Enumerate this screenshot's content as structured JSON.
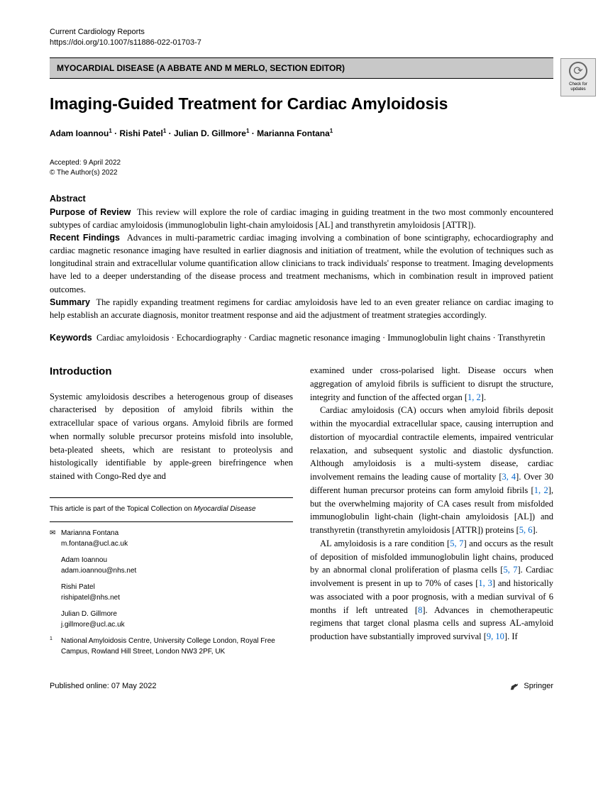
{
  "header": {
    "journal": "Current Cardiology Reports",
    "doi": "https://doi.org/10.1007/s11886-022-01703-7"
  },
  "section_bar": "MYOCARDIAL DISEASE (A ABBATE AND M MERLO, SECTION EDITOR)",
  "check_updates": "Check for updates",
  "title": "Imaging-Guided Treatment for Cardiac Amyloidosis",
  "authors_html": "Adam Ioannou<sup>1</sup> · Rishi Patel<sup>1</sup> · Julian D. Gillmore<sup>1</sup> · Marianna Fontana<sup>1</sup>",
  "accepted": "Accepted: 9 April 2022",
  "copyright": "© The Author(s) 2022",
  "abstract": {
    "heading": "Abstract",
    "purpose_label": "Purpose of Review",
    "purpose_text": "This review will explore the role of cardiac imaging in guiding treatment in the two most commonly encountered subtypes of cardiac amyloidosis (immunoglobulin light-chain amyloidosis [AL] and transthyretin amyloidosis [ATTR]).",
    "findings_label": "Recent Findings",
    "findings_text": "Advances in multi-parametric cardiac imaging involving a combination of bone scintigraphy, echocardiography and cardiac magnetic resonance imaging have resulted in earlier diagnosis and initiation of treatment, while the evolution of techniques such as longitudinal strain and extracellular volume quantification allow clinicians to track individuals' response to treatment. Imaging developments have led to a deeper understanding of the disease process and treatment mechanisms, which in combination result in improved patient outcomes.",
    "summary_label": "Summary",
    "summary_text": "The rapidly expanding treatment regimens for cardiac amyloidosis have led to an even greater reliance on cardiac imaging to help establish an accurate diagnosis, monitor treatment response and aid the adjustment of treatment strategies accordingly."
  },
  "keywords": {
    "label": "Keywords",
    "text": "Cardiac amyloidosis · Echocardiography · Cardiac magnetic resonance imaging · Immunoglobulin light chains · Transthyretin"
  },
  "intro": {
    "heading": "Introduction",
    "p1": "Systemic amyloidosis describes a heterogenous group of diseases characterised by deposition of amyloid fibrils within the extracellular space of various organs. Amyloid fibrils are formed when normally soluble precursor proteins misfold into insoluble, beta-pleated sheets, which are resistant to proteolysis and histologically identifiable by apple-green birefringence when stained with Congo-Red dye and",
    "p1b": "examined under cross-polarised light. Disease occurs when aggregation of amyloid fibrils is sufficient to disrupt the structure, integrity and function of the affected organ [",
    "p2": "Cardiac amyloidosis (CA) occurs when amyloid fibrils deposit within the myocardial extracellular space, causing interruption and distortion of myocardial contractile elements, impaired ventricular relaxation, and subsequent systolic and diastolic dysfunction. Although amyloidosis is a multi-system disease, cardiac involvement remains the leading cause of mortality [",
    "p2b": "]. Over 30 different human precursor proteins can form amyloid fibrils [",
    "p2c": "], but the overwhelming majority of CA cases result from misfolded immunoglobulin light-chain (light-chain amyloidosis [AL]) and transthyretin (transthyretin amyloidosis [ATTR]) proteins [",
    "p3": "AL amyloidosis is a rare condition [",
    "p3b": "] and occurs as the result of deposition of misfolded immunoglobulin light chains, produced by an abnormal clonal proliferation of plasma cells [",
    "p3c": "]. Cardiac involvement is present in up to 70% of cases [",
    "p3d": "] and historically was associated with a poor prognosis, with a median survival of 6 months if left untreated [",
    "p3e": "]. Advances in chemotherapeutic regimens that target clonal plasma cells and supress AL-amyloid production have substantially improved survival [",
    "p3f": "]. If"
  },
  "refs": {
    "r12": "1, 2",
    "r34": "3, 4",
    "r12b": "1, 2",
    "r56": "5, 6",
    "r57": "5, 7",
    "r57b": "5, 7",
    "r13": "1, 3",
    "r8": "8",
    "r910": "9, 10"
  },
  "footnote": {
    "note_pre": "This article is part of the Topical Collection on ",
    "note_em": "Myocardial Disease",
    "corr": [
      {
        "name": "Marianna Fontana",
        "email": "m.fontana@ucl.ac.uk"
      },
      {
        "name": "Adam Ioannou",
        "email": "adam.ioannou@nhs.net"
      },
      {
        "name": "Rishi Patel",
        "email": "rishipatel@nhs.net"
      },
      {
        "name": "Julian D. Gillmore",
        "email": "j.gillmore@ucl.ac.uk"
      }
    ],
    "affil_num": "1",
    "affil": "National Amyloidosis Centre, University College London, Royal Free Campus, Rowland Hill Street, London NW3 2PF, UK"
  },
  "footer": {
    "published": "Published online: 07 May 2022",
    "publisher": "Springer"
  },
  "colors": {
    "section_bg": "#c8c8c8",
    "ref_link": "#0066cc"
  }
}
